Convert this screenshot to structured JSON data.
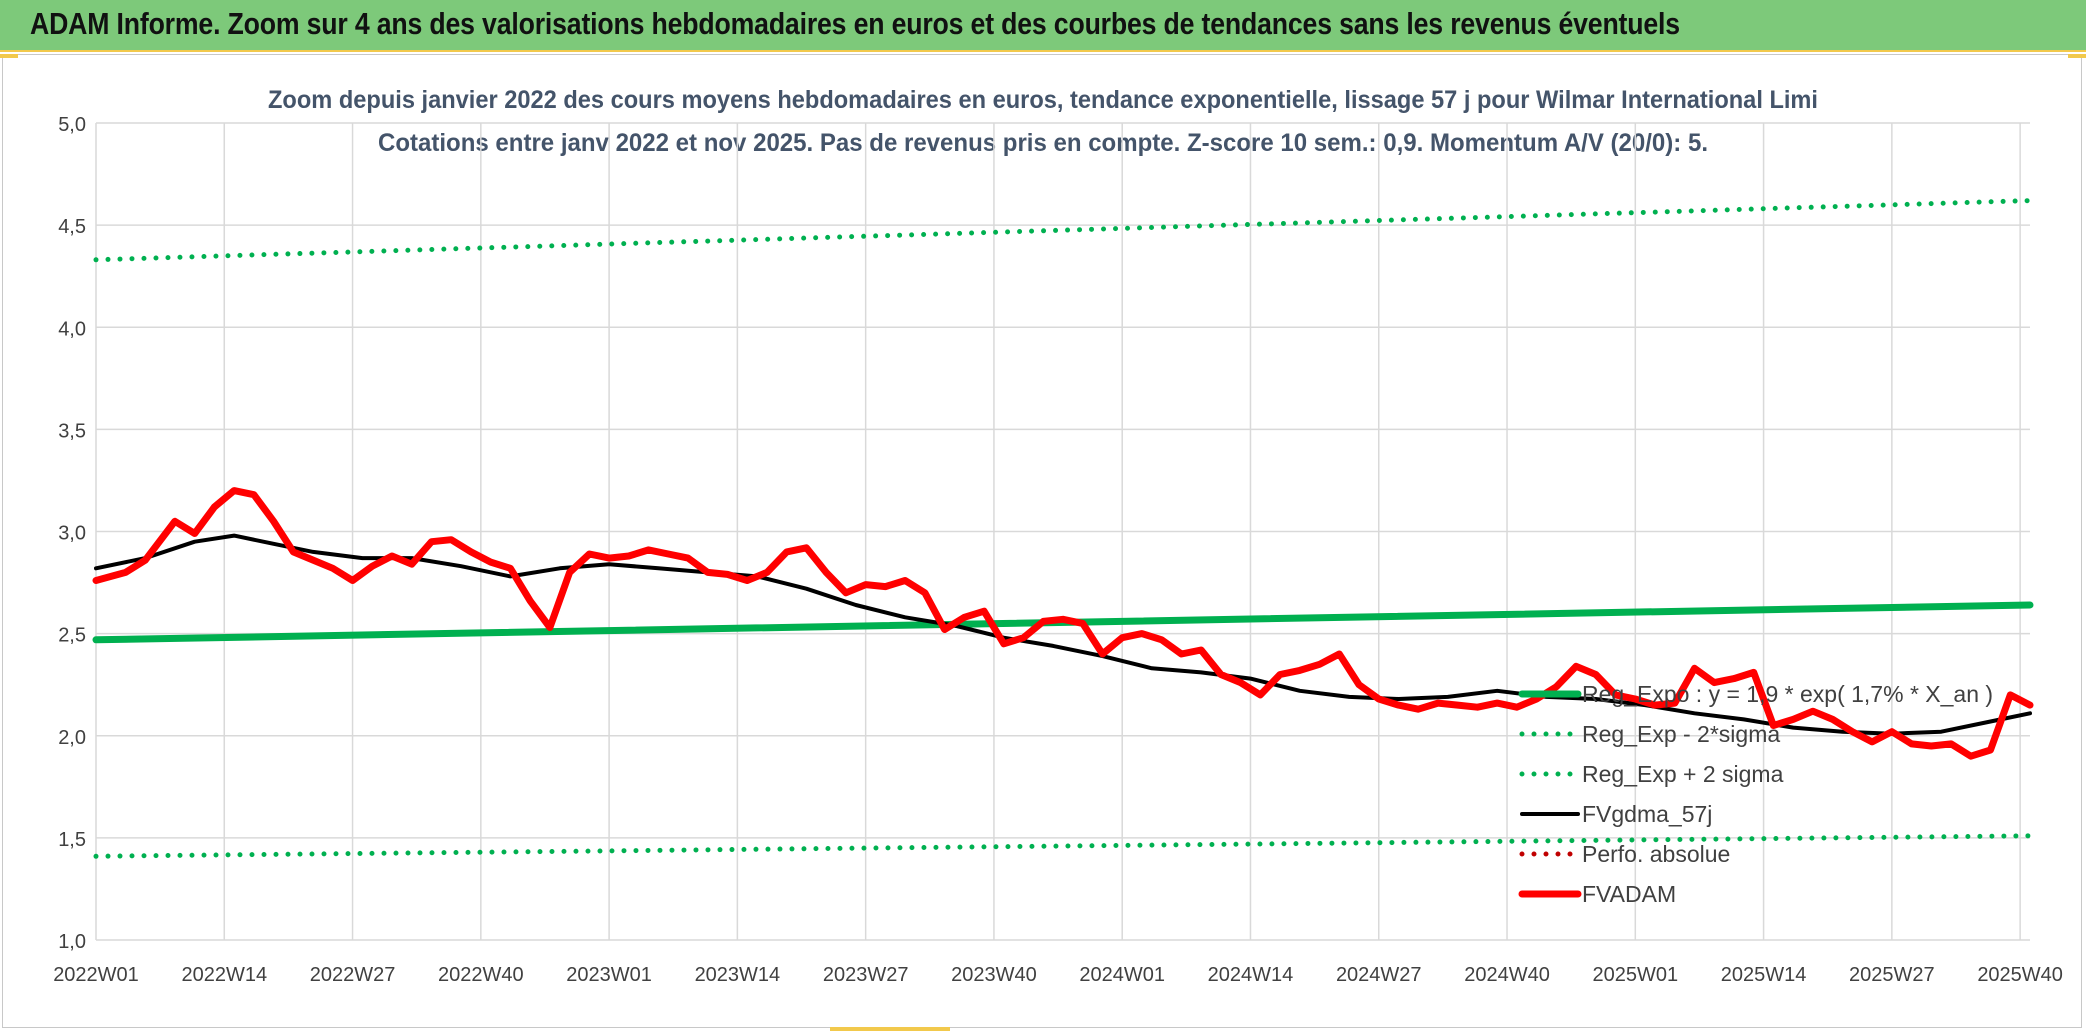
{
  "header": {
    "title": "ADAM Informe. Zoom sur 4 ans des valorisations hebdomadaires en euros et des courbes de tendances sans les revenus éventuels"
  },
  "colors": {
    "banner": "#7dc97a",
    "reg_expo": "#00b050",
    "fvgdma": "#000000",
    "fvadam": "#ff0000",
    "perfo": "#c00000",
    "grid": "#d9d9d9"
  },
  "chart_data": {
    "type": "line",
    "title_line1": "Zoom depuis janvier 2022 des cours moyens hebdomadaires en euros, tendance exponentielle, lissage 57 j pour Wilmar International Limi",
    "title_line2": "Cotations entre janv 2022 et nov 2025. Pas de revenus pris en compte. Z-score 10 sem.: 0,9. Momentum A/V (20/0): 5.",
    "x_tick_labels": [
      "2022W01",
      "2022W14",
      "2022W27",
      "2022W40",
      "2023W01",
      "2023W14",
      "2023W27",
      "2023W40",
      "2024W01",
      "2024W14",
      "2024W27",
      "2024W40",
      "2025W01",
      "2025W14",
      "2025W27",
      "2025W40"
    ],
    "y_tick_labels": [
      "1,0",
      "1,5",
      "2,0",
      "2,5",
      "3,0",
      "3,5",
      "4,0",
      "4,5",
      "5,0"
    ],
    "ylim": [
      1.0,
      5.0
    ],
    "y_step": 0.5,
    "x_weeks_total": 197,
    "grid": true,
    "legend_position": "right",
    "series": [
      {
        "name": "Reg_Expo : y = 1,9 * exp( 1,7% *  X_an )",
        "style": "solid-thick",
        "color": "#00b050",
        "x": [
          0,
          196
        ],
        "y": [
          2.47,
          2.64
        ]
      },
      {
        "name": "Reg_Exp - 2*sigma",
        "style": "dotted",
        "color": "#00b050",
        "x": [
          0,
          196
        ],
        "y": [
          1.41,
          1.51
        ]
      },
      {
        "name": "Reg_Exp + 2 sigma",
        "style": "dotted",
        "color": "#00b050",
        "x": [
          0,
          196
        ],
        "y": [
          4.33,
          4.62
        ]
      },
      {
        "name": "FVgdma_57j",
        "style": "solid",
        "color": "#000000",
        "x": [
          0,
          5,
          10,
          14,
          18,
          22,
          27,
          32,
          37,
          42,
          47,
          52,
          57,
          62,
          67,
          72,
          77,
          82,
          87,
          92,
          97,
          102,
          107,
          112,
          117,
          122,
          127,
          132,
          137,
          142,
          147,
          152,
          157,
          162,
          167,
          172,
          177,
          182,
          187,
          192,
          196
        ],
        "y": [
          2.82,
          2.87,
          2.95,
          2.98,
          2.94,
          2.9,
          2.87,
          2.87,
          2.83,
          2.78,
          2.82,
          2.84,
          2.82,
          2.8,
          2.78,
          2.72,
          2.64,
          2.58,
          2.54,
          2.48,
          2.44,
          2.39,
          2.33,
          2.31,
          2.28,
          2.22,
          2.19,
          2.18,
          2.19,
          2.22,
          2.19,
          2.18,
          2.15,
          2.11,
          2.08,
          2.04,
          2.02,
          2.01,
          2.02,
          2.07,
          2.11
        ]
      },
      {
        "name": "Perfo. absolue",
        "style": "dotted",
        "color": "#c00000",
        "x": [],
        "y": []
      },
      {
        "name": "FVADAM",
        "style": "solid-thick",
        "color": "#ff0000",
        "x": [
          0,
          3,
          5,
          8,
          10,
          12,
          14,
          16,
          18,
          20,
          22,
          24,
          26,
          28,
          30,
          32,
          34,
          36,
          38,
          40,
          42,
          44,
          46,
          48,
          50,
          52,
          54,
          56,
          58,
          60,
          62,
          64,
          66,
          68,
          70,
          72,
          74,
          76,
          78,
          80,
          82,
          84,
          86,
          88,
          90,
          92,
          94,
          96,
          98,
          100,
          102,
          104,
          106,
          108,
          110,
          112,
          114,
          116,
          118,
          120,
          122,
          124,
          126,
          128,
          130,
          132,
          134,
          136,
          138,
          140,
          142,
          144,
          146,
          148,
          150,
          152,
          154,
          156,
          158,
          160,
          162,
          164,
          166,
          168,
          170,
          172,
          174,
          176,
          178,
          180,
          182,
          184,
          186,
          188,
          190,
          192,
          194,
          196
        ],
        "y": [
          2.76,
          2.8,
          2.86,
          3.05,
          2.99,
          3.12,
          3.2,
          3.18,
          3.05,
          2.9,
          2.86,
          2.82,
          2.76,
          2.83,
          2.88,
          2.84,
          2.95,
          2.96,
          2.9,
          2.85,
          2.82,
          2.66,
          2.53,
          2.8,
          2.89,
          2.87,
          2.88,
          2.91,
          2.89,
          2.87,
          2.8,
          2.79,
          2.76,
          2.8,
          2.9,
          2.92,
          2.8,
          2.7,
          2.74,
          2.73,
          2.76,
          2.7,
          2.52,
          2.58,
          2.61,
          2.45,
          2.48,
          2.56,
          2.57,
          2.55,
          2.4,
          2.48,
          2.5,
          2.47,
          2.4,
          2.42,
          2.3,
          2.26,
          2.2,
          2.3,
          2.32,
          2.35,
          2.4,
          2.25,
          2.18,
          2.15,
          2.13,
          2.16,
          2.15,
          2.14,
          2.16,
          2.14,
          2.18,
          2.24,
          2.34,
          2.3,
          2.2,
          2.18,
          2.15,
          2.16,
          2.33,
          2.26,
          2.28,
          2.31,
          2.05,
          2.08,
          2.12,
          2.08,
          2.02,
          1.97,
          2.02,
          1.96,
          1.95,
          1.96,
          1.9,
          1.93,
          2.2,
          2.15
        ]
      }
    ]
  }
}
